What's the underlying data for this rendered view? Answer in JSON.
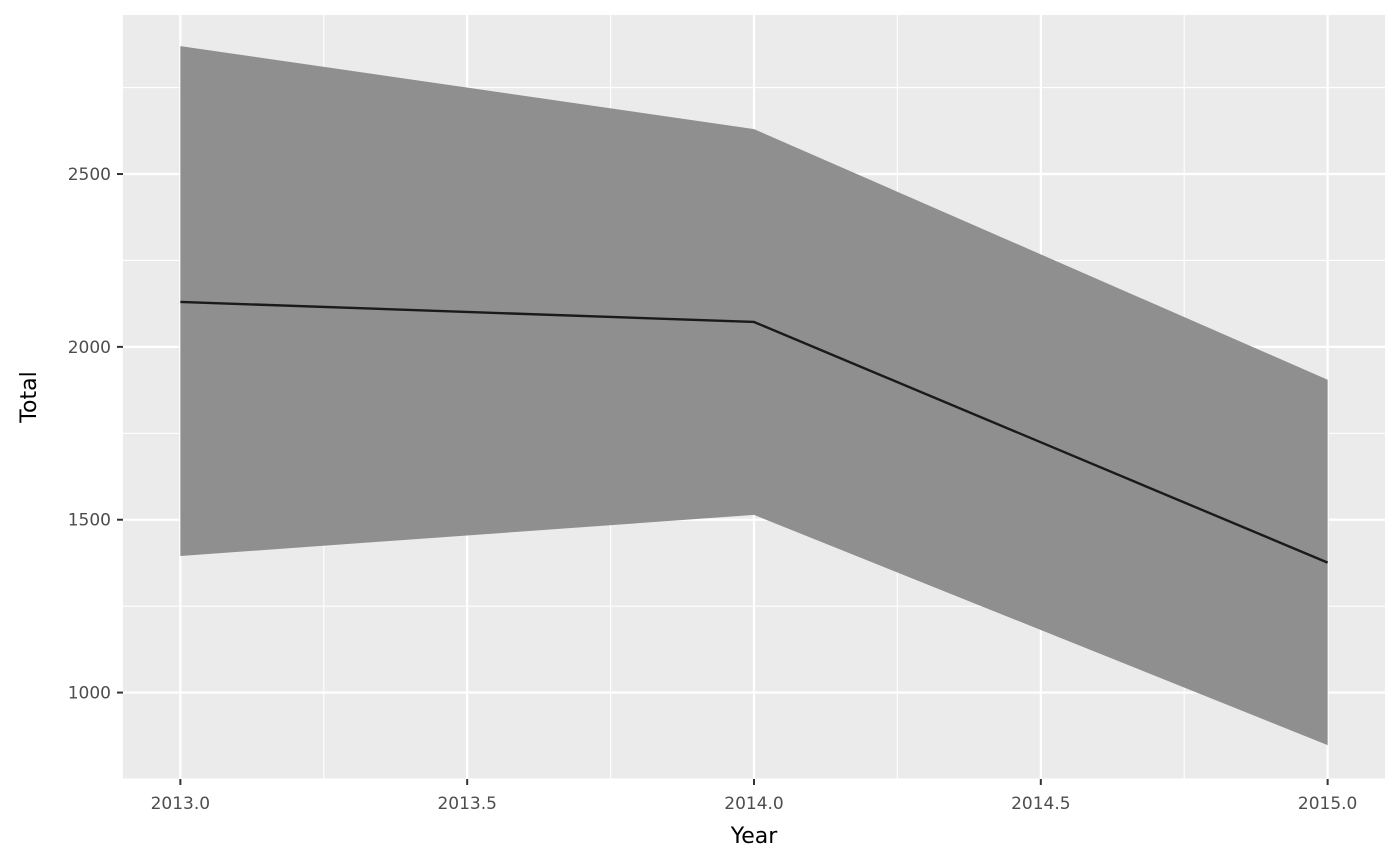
{
  "chart_data": {
    "type": "area",
    "title": "",
    "xlabel": "Year",
    "ylabel": "Total",
    "xlim": [
      2012.9,
      2015.1
    ],
    "ylim": [
      750,
      2960
    ],
    "x_ticks": [
      2013.0,
      2013.5,
      2014.0,
      2014.5,
      2015.0
    ],
    "x_tick_labels": [
      "2013.0",
      "2013.5",
      "2014.0",
      "2014.5",
      "2015.0"
    ],
    "y_ticks": [
      1000,
      1500,
      2000,
      2500
    ],
    "y_tick_labels": [
      "1000",
      "1500",
      "2000",
      "2500"
    ],
    "grid": true,
    "legend": "none",
    "series": [
      {
        "x": [
          2013.0,
          2014.0,
          2015.0
        ],
        "values": [
          2130,
          2072,
          1376
        ],
        "lower": [
          1395,
          1514,
          848
        ],
        "upper": [
          2870,
          2630,
          1905
        ]
      }
    ],
    "colors": {
      "panel": "#ebebeb",
      "grid": "#ffffff",
      "ribbon": "#8f8f8f",
      "line": "#1a1a1a",
      "tick_text": "#4d4d4d",
      "axis_title": "#000000"
    }
  }
}
